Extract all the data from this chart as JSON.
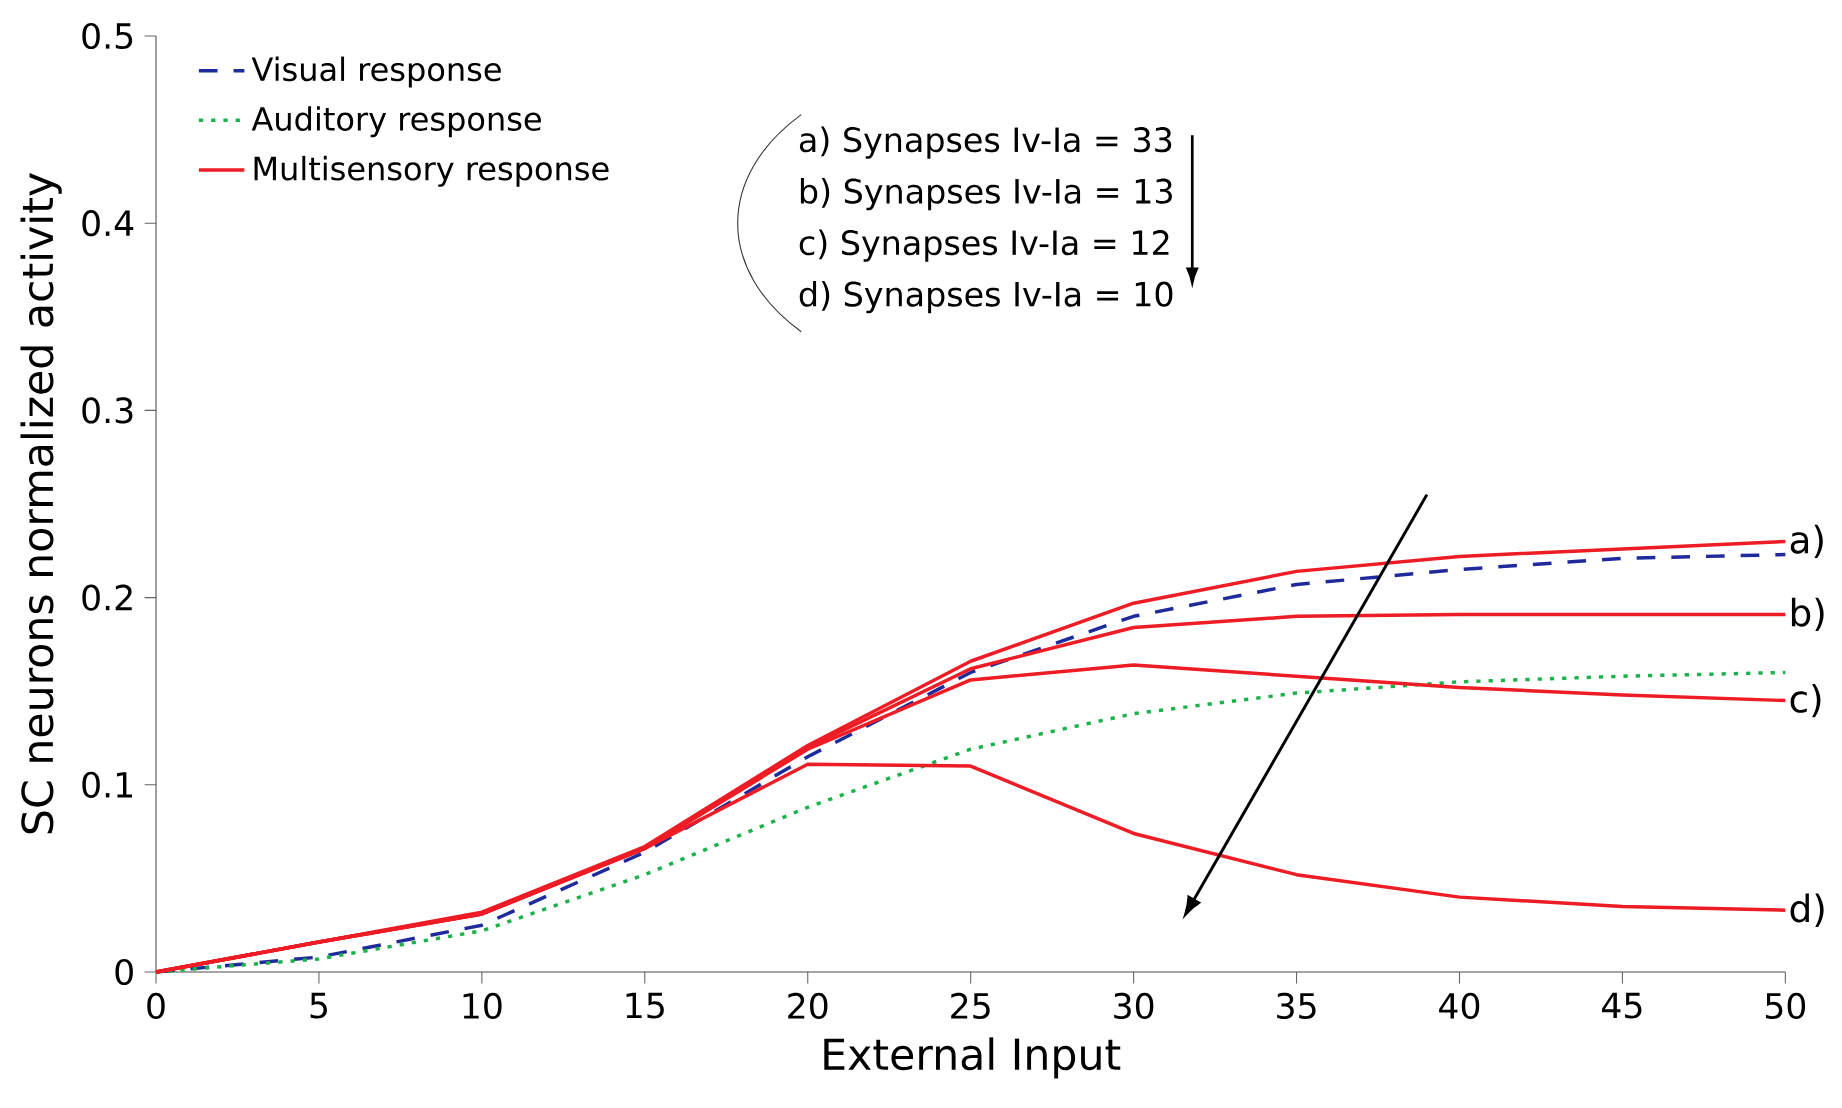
{
  "chart_data": {
    "type": "line",
    "xlabel": "External Input",
    "ylabel": "SC neurons normalized activity",
    "x": [
      0,
      5,
      10,
      15,
      20,
      25,
      30,
      35,
      40,
      45,
      50
    ],
    "xlim": [
      0,
      50
    ],
    "xticks": [
      0,
      5,
      10,
      15,
      20,
      25,
      30,
      35,
      40,
      45,
      50
    ],
    "ylim": [
      0,
      0.5
    ],
    "yticks": [
      0,
      0.1,
      0.2,
      0.3,
      0.4,
      0.5
    ],
    "legend": "top left",
    "grid": false,
    "marker": "none",
    "series": [
      {
        "name": "Visual response",
        "color": "#1f2a9c",
        "line_style": "dashed",
        "values": [
          0,
          0.008,
          0.025,
          0.064,
          0.115,
          0.16,
          0.19,
          0.207,
          0.215,
          0.221,
          0.223
        ]
      },
      {
        "name": "Auditory response",
        "color": "#19b34a",
        "line_style": "dotted",
        "values": [
          0,
          0.007,
          0.022,
          0.052,
          0.088,
          0.119,
          0.138,
          0.149,
          0.155,
          0.158,
          0.16
        ]
      },
      {
        "name": "Multisensory response",
        "color": "#ee1c24",
        "line_style": "solid",
        "values": [
          0,
          0.016,
          0.032,
          0.067,
          0.121,
          0.166,
          0.197,
          0.214,
          0.222,
          0.226,
          0.23
        ]
      },
      {
        "color": "#ee1c24",
        "line_style": "solid",
        "values": [
          0,
          0.016,
          0.031,
          0.066,
          0.12,
          0.162,
          0.184,
          0.19,
          0.191,
          0.191,
          0.191
        ]
      },
      {
        "color": "#ee1c24",
        "line_style": "solid",
        "values": [
          0,
          0.016,
          0.031,
          0.066,
          0.119,
          0.156,
          0.164,
          0.158,
          0.152,
          0.148,
          0.145
        ]
      },
      {
        "color": "#ee1c24",
        "line_style": "solid",
        "values": [
          0,
          0.016,
          0.031,
          0.066,
          0.111,
          0.11,
          0.074,
          0.052,
          0.04,
          0.035,
          0.033
        ]
      }
    ],
    "annotations": [
      "a)",
      "b)",
      "c)",
      "d)",
      "a)  Synapses Iv-Ia = 33",
      "b)  Synapses Iv-Ia = 13",
      "c)  Synapses Iv-Ia = 12",
      "d)  Synapses Iv-Ia = 10"
    ]
  }
}
